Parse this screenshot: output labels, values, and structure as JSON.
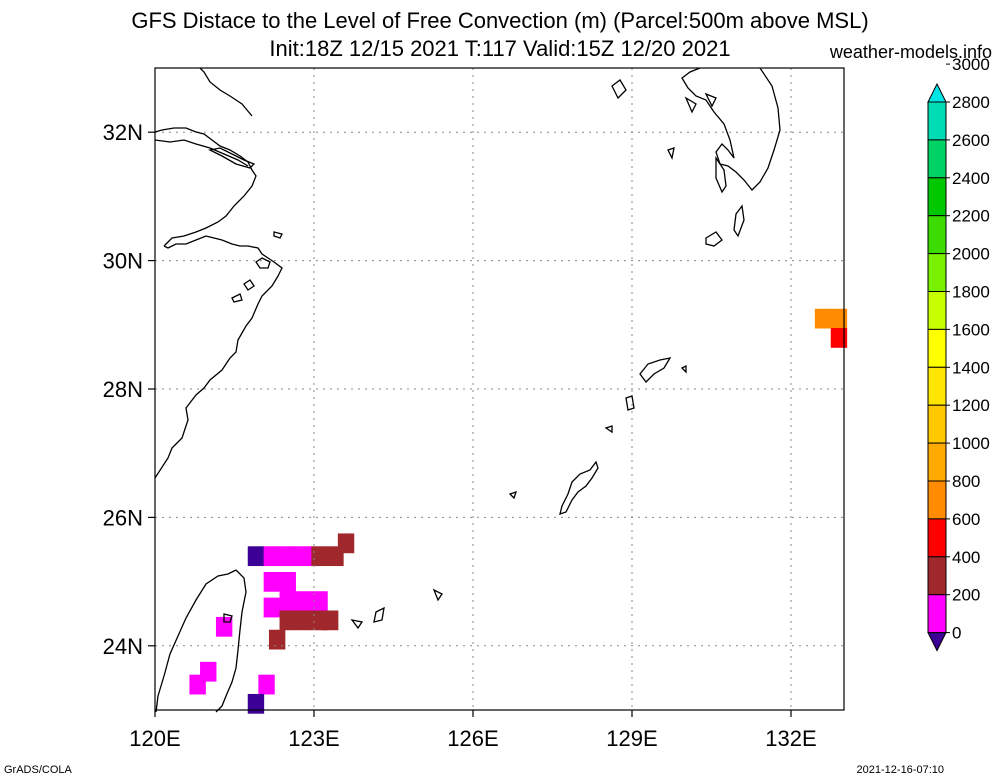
{
  "header": {
    "title_line1": "GFS Distace to the Level of Free Convection (m) (Parcel:500m above MSL)",
    "title_line2": "Init:18Z 12/15 2021 T:117 Valid:15Z 12/20 2021",
    "site": "weather-models.info"
  },
  "footer": {
    "left": "GrADS/COLA",
    "right": "2021-12-16-07:10"
  },
  "map": {
    "lon_range": [
      120,
      133
    ],
    "lat_range": [
      23,
      33
    ],
    "lon_ticks": [
      120,
      123,
      126,
      129,
      132
    ],
    "lat_ticks": [
      24,
      26,
      28,
      30,
      32
    ],
    "lon_labels": [
      "120E",
      "123E",
      "126E",
      "129E",
      "132E"
    ],
    "lat_labels": [
      "24N",
      "26N",
      "28N",
      "30N",
      "32N"
    ],
    "grid": true
  },
  "colorbar": {
    "labels": [
      "0",
      "200",
      "400",
      "600",
      "800",
      "1000",
      "1200",
      "1400",
      "1600",
      "1800",
      "2000",
      "2200",
      "2400",
      "2600",
      "2800",
      "3000"
    ],
    "colors": [
      "#3c0096",
      "#ff00ff",
      "#a0282c",
      "#ff0000",
      "#ff8c00",
      "#ffaa00",
      "#ffc800",
      "#ffe600",
      "#ffff00",
      "#c8ff00",
      "#78f000",
      "#3cdc00",
      "#00c800",
      "#00d264",
      "#00dcb4",
      "#00e6e6"
    ]
  },
  "chart_data": {
    "type": "heatmap",
    "units": "m",
    "cells": [
      {
        "lon": 121.9,
        "lat": 25.4,
        "value": 100
      },
      {
        "lon": 122.2,
        "lat": 25.4,
        "value": 300
      },
      {
        "lon": 122.5,
        "lat": 25.4,
        "value": 300
      },
      {
        "lon": 122.8,
        "lat": 25.4,
        "value": 300
      },
      {
        "lon": 123.1,
        "lat": 25.4,
        "value": 500
      },
      {
        "lon": 123.4,
        "lat": 25.4,
        "value": 500
      },
      {
        "lon": 123.6,
        "lat": 25.6,
        "value": 500
      },
      {
        "lon": 122.2,
        "lat": 25.0,
        "value": 300
      },
      {
        "lon": 122.5,
        "lat": 25.0,
        "value": 300
      },
      {
        "lon": 122.2,
        "lat": 24.6,
        "value": 300
      },
      {
        "lon": 122.5,
        "lat": 24.7,
        "value": 300
      },
      {
        "lon": 122.8,
        "lat": 24.7,
        "value": 300
      },
      {
        "lon": 123.1,
        "lat": 24.7,
        "value": 300
      },
      {
        "lon": 122.5,
        "lat": 24.4,
        "value": 500
      },
      {
        "lon": 122.8,
        "lat": 24.4,
        "value": 500
      },
      {
        "lon": 123.1,
        "lat": 24.4,
        "value": 500
      },
      {
        "lon": 123.3,
        "lat": 24.4,
        "value": 500
      },
      {
        "lon": 122.3,
        "lat": 24.1,
        "value": 500
      },
      {
        "lon": 121.3,
        "lat": 24.3,
        "value": 300
      },
      {
        "lon": 121.0,
        "lat": 23.6,
        "value": 300
      },
      {
        "lon": 120.8,
        "lat": 23.4,
        "value": 300
      },
      {
        "lon": 122.1,
        "lat": 23.4,
        "value": 300
      },
      {
        "lon": 121.9,
        "lat": 23.1,
        "value": 100
      },
      {
        "lon": 132.6,
        "lat": 29.1,
        "value": 900
      },
      {
        "lon": 132.9,
        "lat": 29.1,
        "value": 900
      },
      {
        "lon": 132.9,
        "lat": 28.8,
        "value": 700
      }
    ]
  }
}
